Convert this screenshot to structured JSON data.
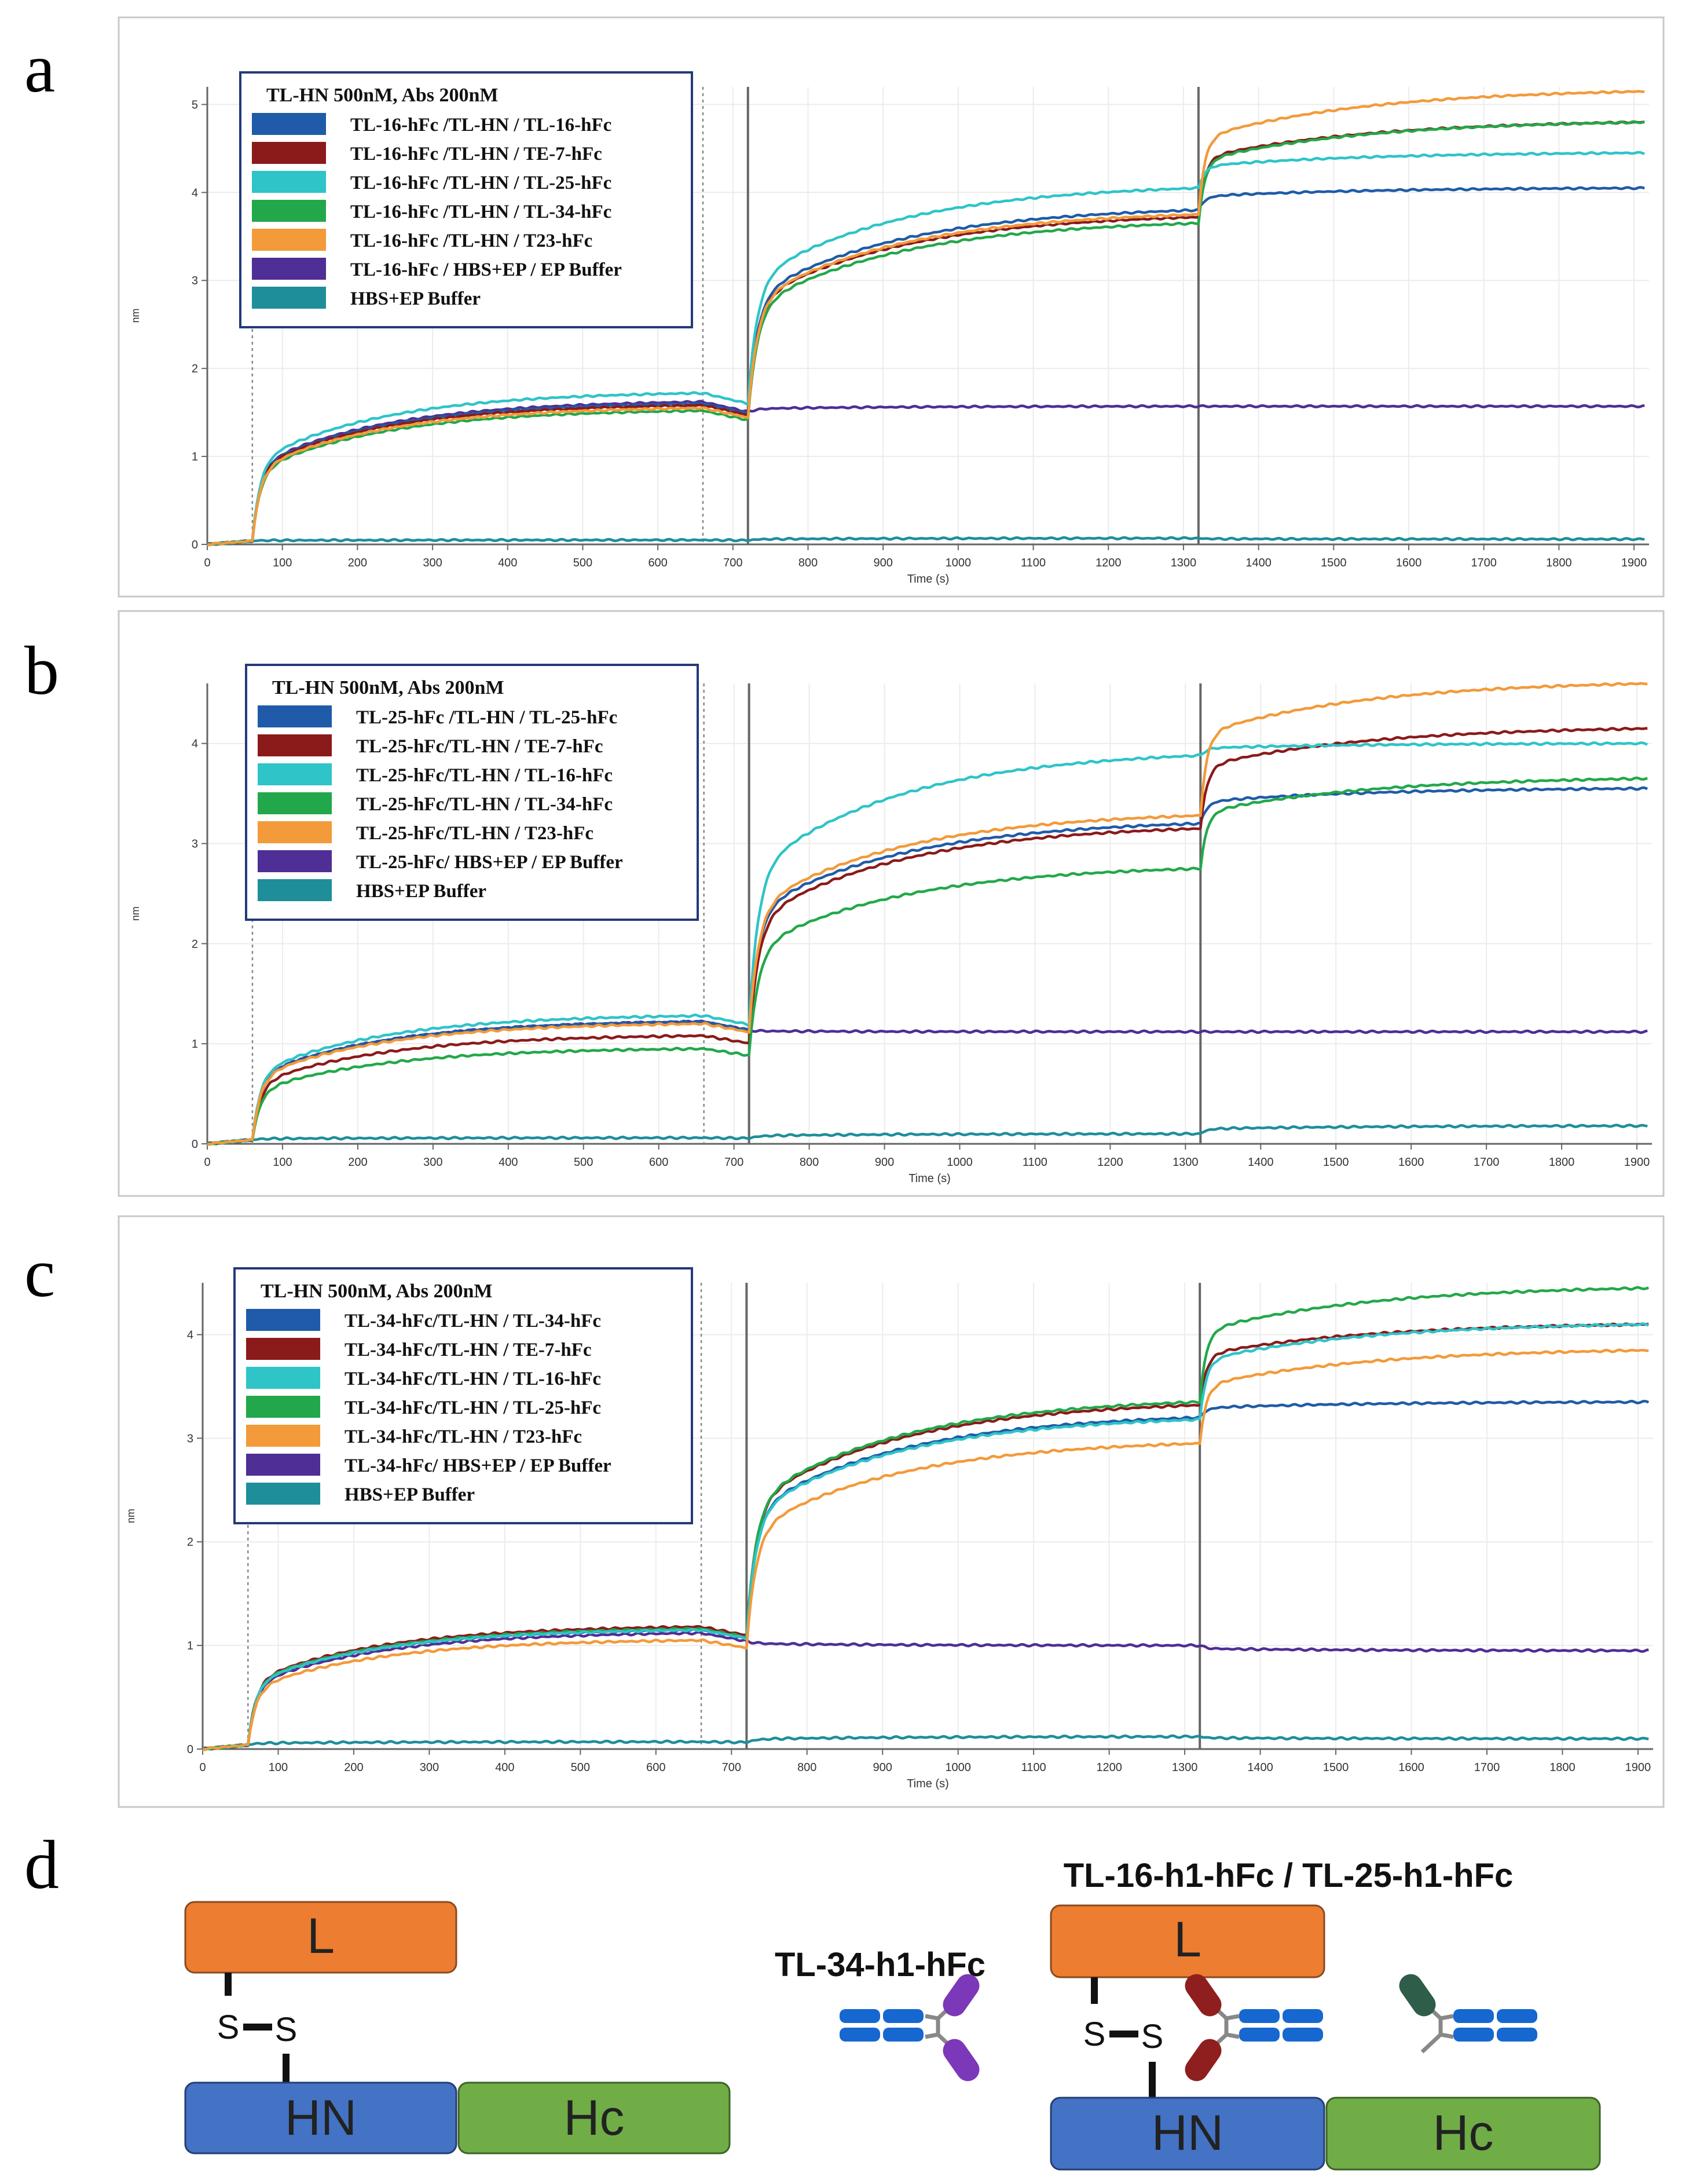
{
  "colors": {
    "blue": "#1f5ba8",
    "darkred": "#8b1a1a",
    "cyan": "#2ec4c8",
    "green": "#22a84a",
    "orange": "#f39a3a",
    "purple": "#4f2e95",
    "teal": "#1e8e9a",
    "domain_L": "#ed7d31",
    "domain_HN": "#4472c4",
    "domain_Hc": "#70ad47",
    "ab_blue": "#1667cf",
    "ab_purple": "#7b38b8",
    "ab_red": "#8f1f1f",
    "ab_green": "#2e5e4a"
  },
  "chart_data": [
    {
      "panel": "a",
      "type": "line",
      "legend_title": "TL-HN 500nM, Abs 200nM",
      "xlabel": "Time (s)",
      "ylabel": "nm",
      "xlim": [
        0,
        1920
      ],
      "ylim": [
        0,
        5.2
      ],
      "xticks": [
        0,
        100,
        200,
        300,
        400,
        500,
        600,
        700,
        800,
        900,
        1000,
        1100,
        1200,
        1300,
        1400,
        1500,
        1600,
        1700,
        1800,
        1900
      ],
      "yticks": [
        0,
        1,
        2,
        3,
        4,
        5
      ],
      "phase_dotted": [
        60,
        660
      ],
      "phase_solid": [
        720,
        1320
      ],
      "series": [
        {
          "name": "TL-16-hFc /TL-HN / TL-16-hFc",
          "color": "blue",
          "p1": 1.6,
          "p2": 3.8,
          "p3": 4.05
        },
        {
          "name": "TL-16-hFc /TL-HN / TE-7-hFc",
          "color": "darkred",
          "p1": 1.58,
          "p2": 3.72,
          "p3": 4.8
        },
        {
          "name": "TL-16-hFc /TL-HN / TL-25-hFc",
          "color": "cyan",
          "p1": 1.72,
          "p2": 4.05,
          "p3": 4.45
        },
        {
          "name": "TL-16-hFc /TL-HN / TL-34-hFc",
          "color": "green",
          "p1": 1.52,
          "p2": 3.65,
          "p3": 4.8
        },
        {
          "name": "TL-16-hFc /TL-HN / T23-hFc",
          "color": "orange",
          "p1": 1.55,
          "p2": 3.75,
          "p3": 5.15
        },
        {
          "name": "TL-16-hFc / HBS+EP / EP Buffer",
          "color": "purple",
          "p1": 1.62,
          "p2": 1.57,
          "p3": 1.57
        },
        {
          "name": "HBS+EP Buffer",
          "color": "teal",
          "p1": 0.05,
          "p2": 0.07,
          "p3": 0.06
        }
      ]
    },
    {
      "panel": "b",
      "type": "line",
      "legend_title": "TL-HN 500nM, Abs 200nM",
      "xlabel": "Time (s)",
      "ylabel": "nm",
      "xlim": [
        0,
        1920
      ],
      "ylim": [
        0,
        4.6
      ],
      "xticks": [
        0,
        100,
        200,
        300,
        400,
        500,
        600,
        700,
        800,
        900,
        1000,
        1100,
        1200,
        1300,
        1400,
        1500,
        1600,
        1700,
        1800,
        1900
      ],
      "yticks": [
        0,
        1,
        2,
        3,
        4
      ],
      "phase_dotted": [
        60,
        660
      ],
      "phase_solid": [
        720,
        1320
      ],
      "series": [
        {
          "name": "TL-25-hFc /TL-HN / TL-25-hFc",
          "color": "blue",
          "p1": 1.22,
          "p2": 3.2,
          "p3": 3.55
        },
        {
          "name": "TL-25-hFc/TL-HN / TE-7-hFc",
          "color": "darkred",
          "p1": 1.08,
          "p2": 3.15,
          "p3": 4.15
        },
        {
          "name": "TL-25-hFc/TL-HN / TL-16-hFc",
          "color": "cyan",
          "p1": 1.28,
          "p2": 3.88,
          "p3": 4.0
        },
        {
          "name": "TL-25-hFc/TL-HN / TL-34-hFc",
          "color": "green",
          "p1": 0.95,
          "p2": 2.75,
          "p3": 3.65
        },
        {
          "name": "TL-25-hFc/TL-HN / T23-hFc",
          "color": "orange",
          "p1": 1.2,
          "p2": 3.28,
          "p3": 4.6
        },
        {
          "name": "TL-25-hFc/ HBS+EP / EP Buffer",
          "color": "purple",
          "p1": 1.22,
          "p2": 1.12,
          "p3": 1.12
        },
        {
          "name": "HBS+EP Buffer",
          "color": "teal",
          "p1": 0.06,
          "p2": 0.1,
          "p3": 0.18
        }
      ]
    },
    {
      "panel": "c",
      "type": "line",
      "legend_title": "TL-HN 500nM, Abs 200nM",
      "xlabel": "Time (s)",
      "ylabel": "nm",
      "xlim": [
        0,
        1920
      ],
      "ylim": [
        0,
        4.5
      ],
      "xticks": [
        0,
        100,
        200,
        300,
        400,
        500,
        600,
        700,
        800,
        900,
        1000,
        1100,
        1200,
        1300,
        1400,
        1500,
        1600,
        1700,
        1800,
        1900
      ],
      "yticks": [
        0,
        1,
        2,
        3,
        4
      ],
      "phase_dotted": [
        60,
        660
      ],
      "phase_solid": [
        720,
        1320
      ],
      "series": [
        {
          "name": "TL-34-hFc/TL-HN / TL-34-hFc",
          "color": "blue",
          "p1": 1.15,
          "p2": 3.2,
          "p3": 3.35
        },
        {
          "name": "TL-34-hFc/TL-HN / TE-7-hFc",
          "color": "darkred",
          "p1": 1.18,
          "p2": 3.32,
          "p3": 4.1
        },
        {
          "name": "TL-34-hFc/TL-HN / TL-16-hFc",
          "color": "cyan",
          "p1": 1.15,
          "p2": 3.18,
          "p3": 4.1
        },
        {
          "name": "TL-34-hFc/TL-HN / TL-25-hFc",
          "color": "green",
          "p1": 1.16,
          "p2": 3.35,
          "p3": 4.45
        },
        {
          "name": "TL-34-hFc/TL-HN / T23-hFc",
          "color": "orange",
          "p1": 1.05,
          "p2": 2.95,
          "p3": 3.85
        },
        {
          "name": "TL-34-hFc/ HBS+EP / EP Buffer",
          "color": "purple",
          "p1": 1.12,
          "p2": 1.0,
          "p3": 0.95
        },
        {
          "name": "HBS+EP Buffer",
          "color": "teal",
          "p1": 0.07,
          "p2": 0.12,
          "p3": 0.1
        }
      ]
    }
  ],
  "panel_d": {
    "letter": "d",
    "left": {
      "L": "L",
      "HN": "HN",
      "Hc": "Hc",
      "s1": "S",
      "s2": "S"
    },
    "right": {
      "L": "L",
      "HN": "HN",
      "Hc": "Hc",
      "s1": "S",
      "s2": "S",
      "label_top": "TL-16-h1-hFc / TL-25-h1-hFc",
      "label_left": "TL-34-h1-hFc"
    }
  }
}
